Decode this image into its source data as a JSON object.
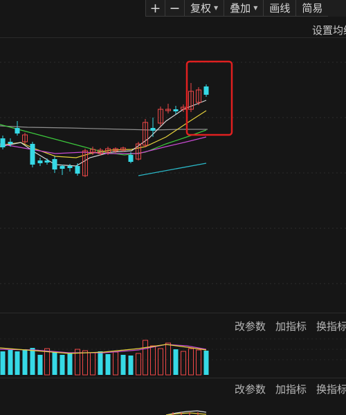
{
  "toolbar": {
    "zoom_in": "+",
    "zoom_out": "−",
    "fuquan": "复权",
    "diejia": "叠加",
    "huaxian": "画线",
    "jian": "简易"
  },
  "main_panel": {
    "setting": "设置均线"
  },
  "volume_panel": {
    "modify_params": "改参数",
    "add_indicator": "加指标",
    "switch_indicator": "换指标"
  },
  "indicator_panel": {
    "modify_params": "改参数",
    "add_indicator": "加指标",
    "switch_indicator": "换指标"
  },
  "colors": {
    "up": "#f04848",
    "down": "#36d9e6",
    "ma_white": "#d8d8d8",
    "ma_yellow": "#e6d23c",
    "ma_green": "#3cc83c",
    "ma_purple": "#c84bd2",
    "ma_gray": "#909090",
    "trendline": "#2ab8c8",
    "highlight_box": "#e02020"
  }
}
